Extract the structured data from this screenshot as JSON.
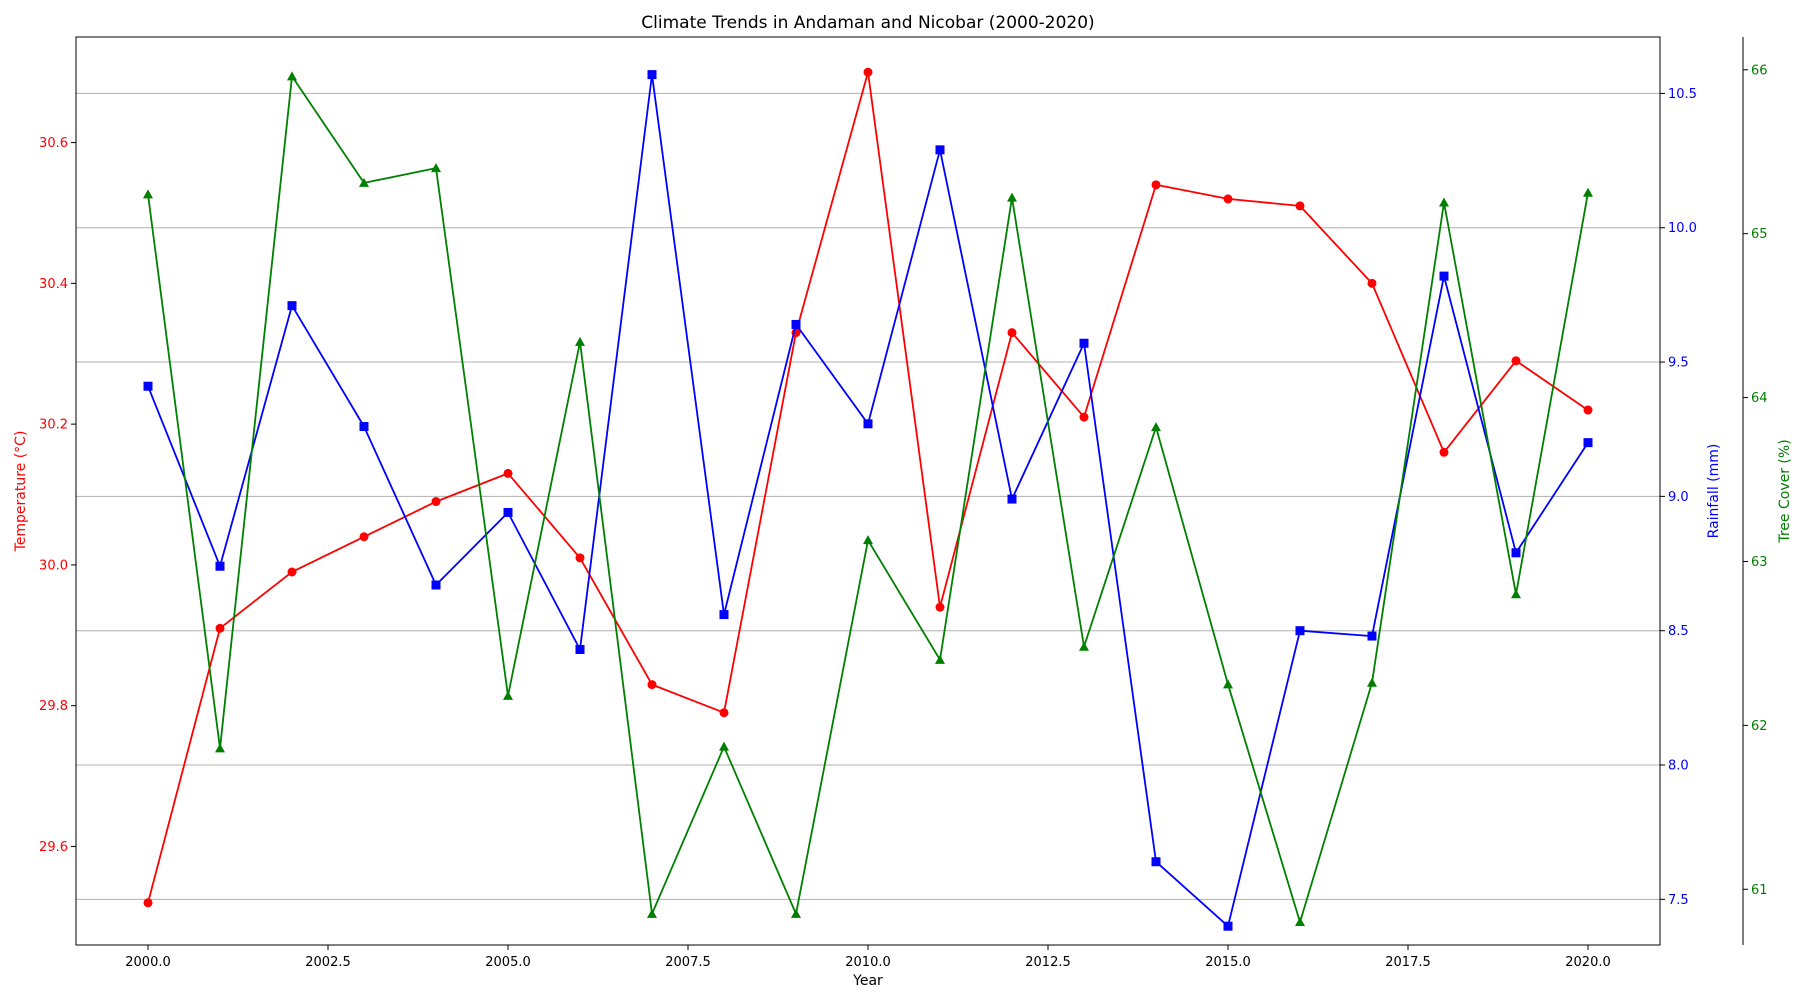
{
  "chart_data": {
    "type": "line",
    "title": "Climate Trends in Andaman and Nicobar (2000-2020)",
    "xlabel": "Year",
    "xlim": [
      1999,
      2021
    ],
    "xticks": [
      "2000.0",
      "2002.5",
      "2005.0",
      "2007.5",
      "2010.0",
      "2012.5",
      "2015.0",
      "2017.5",
      "2020.0"
    ],
    "x": [
      2000,
      2001,
      2002,
      2003,
      2004,
      2005,
      2006,
      2007,
      2008,
      2009,
      2010,
      2011,
      2012,
      2013,
      2014,
      2015,
      2016,
      2017,
      2018,
      2019,
      2020
    ],
    "grid": "horizontal (rainfall axis)",
    "axes": {
      "temperature": {
        "label": "Temperature (°C)",
        "side": "left",
        "color": "#ff0000",
        "ylim": [
          29.46,
          30.75
        ],
        "ticks": [
          "29.6",
          "29.8",
          "30.0",
          "30.2",
          "30.4",
          "30.6"
        ]
      },
      "rainfall": {
        "label": "Rainfall (mm)",
        "side": "right",
        "color": "#0000ff",
        "ylim": [
          7.33,
          10.71
        ],
        "ticks": [
          "7.5",
          "8.0",
          "8.5",
          "9.0",
          "9.5",
          "10.0",
          "10.5"
        ]
      },
      "tree_cover": {
        "label": "Tree Cover (%)",
        "side": "right-outer",
        "color": "#008000",
        "ylim": [
          60.66,
          66.2
        ],
        "ticks": [
          "61",
          "62",
          "63",
          "64",
          "65",
          "66"
        ]
      }
    },
    "series": [
      {
        "name": "Temperature (°C)",
        "axis": "temperature",
        "color": "#ff0000",
        "marker": "circle",
        "values": [
          29.52,
          29.91,
          29.99,
          30.04,
          30.09,
          30.13,
          30.01,
          29.83,
          29.79,
          30.33,
          30.7,
          29.94,
          30.33,
          30.21,
          30.54,
          30.52,
          30.51,
          30.4,
          30.16,
          30.29,
          30.22
        ]
      },
      {
        "name": "Rainfall (mm)",
        "axis": "rainfall",
        "color": "#0000ff",
        "marker": "square",
        "values": [
          9.41,
          8.74,
          9.71,
          9.26,
          8.67,
          8.94,
          8.43,
          10.57,
          8.56,
          9.64,
          9.27,
          10.29,
          8.99,
          9.57,
          7.64,
          7.4,
          8.5,
          8.48,
          9.82,
          8.79,
          9.2
        ]
      },
      {
        "name": "Tree Cover (%)",
        "axis": "tree_cover",
        "color": "#008000",
        "marker": "triangle",
        "values": [
          65.24,
          61.86,
          65.96,
          65.31,
          65.4,
          62.18,
          64.34,
          60.85,
          61.87,
          60.85,
          63.13,
          62.4,
          65.22,
          62.48,
          63.82,
          62.25,
          60.8,
          62.26,
          65.19,
          62.8,
          65.25
        ]
      }
    ]
  }
}
